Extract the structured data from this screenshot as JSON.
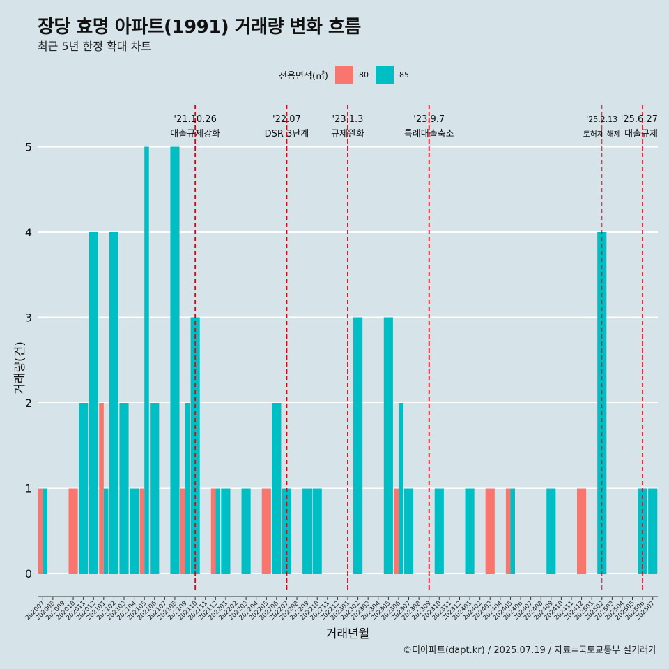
{
  "header": {
    "title": "장당 효명 아파트(1991) 거래량 변화 흐름",
    "subtitle": "최근 5년 한정 확대 차트"
  },
  "legend": {
    "title": "전용면적(㎡)",
    "items": [
      {
        "label": "80",
        "color": "#f8766d"
      },
      {
        "label": "85",
        "color": "#00bfc4"
      }
    ]
  },
  "caption": "©디아파트(dapt.kr) / 2025.07.19 / 자료=국토교통부 실거래가",
  "chart_data": {
    "type": "bar",
    "xlabel": "거래년월",
    "ylabel": "거래량(건)",
    "ylim": [
      0,
      5
    ],
    "yticks": [
      0,
      1,
      2,
      3,
      4,
      5
    ],
    "grid": true,
    "legend_position": "top",
    "categories": [
      "202007",
      "202008",
      "202009",
      "202010",
      "202011",
      "202012",
      "202101",
      "202102",
      "202103",
      "202104",
      "202105",
      "202106",
      "202107",
      "202108",
      "202109",
      "202110",
      "202111",
      "202112",
      "202201",
      "202202",
      "202203",
      "202204",
      "202205",
      "202206",
      "202207",
      "202208",
      "202209",
      "202210",
      "202211",
      "202212",
      "202301",
      "202302",
      "202303",
      "202304",
      "202305",
      "202306",
      "202307",
      "202308",
      "202309",
      "202310",
      "202311",
      "202312",
      "202401",
      "202402",
      "202403",
      "202404",
      "202405",
      "202406",
      "202407",
      "202408",
      "202409",
      "202410",
      "202411",
      "202412",
      "202501",
      "202502",
      "202503",
      "202504",
      "202505",
      "202506",
      "202507"
    ],
    "series": [
      {
        "name": "80",
        "color": "#f8766d",
        "values": [
          1,
          0,
          0,
          1,
          0,
          0,
          2,
          0,
          0,
          0,
          1,
          0,
          0,
          0,
          1,
          0,
          0,
          1,
          0,
          0,
          0,
          0,
          1,
          0,
          0,
          0,
          0,
          0,
          0,
          0,
          0,
          0,
          0,
          0,
          0,
          1,
          0,
          0,
          0,
          0,
          0,
          0,
          0,
          0,
          1,
          0,
          1,
          0,
          0,
          0,
          0,
          0,
          0,
          1,
          0,
          0,
          0,
          0,
          0,
          0,
          0
        ]
      },
      {
        "name": "85",
        "color": "#00bfc4",
        "values": [
          1,
          0,
          0,
          0,
          2,
          4,
          1,
          4,
          2,
          1,
          5,
          2,
          0,
          5,
          2,
          3,
          0,
          1,
          1,
          0,
          1,
          0,
          0,
          2,
          1,
          0,
          1,
          1,
          0,
          0,
          0,
          3,
          0,
          0,
          3,
          2,
          1,
          0,
          0,
          1,
          0,
          0,
          1,
          0,
          0,
          0,
          1,
          0,
          0,
          0,
          1,
          0,
          0,
          0,
          0,
          4,
          0,
          0,
          0,
          1,
          1
        ]
      }
    ],
    "events": [
      {
        "date": "'21.10.26",
        "label": "대출규제강화",
        "at": "202110"
      },
      {
        "date": "'22.07",
        "label": "DSR 3단계",
        "at": "202207"
      },
      {
        "date": "'23.1.3",
        "label": "규제완화",
        "at": "202301"
      },
      {
        "date": "'23.9.7",
        "label": "특례대출축소",
        "at": "202309"
      },
      {
        "date": "'25.2.13",
        "label": "토허제 해제",
        "at": "202502"
      },
      {
        "date": "'25.6.27",
        "label": "대출규제",
        "at": "202506"
      }
    ]
  }
}
